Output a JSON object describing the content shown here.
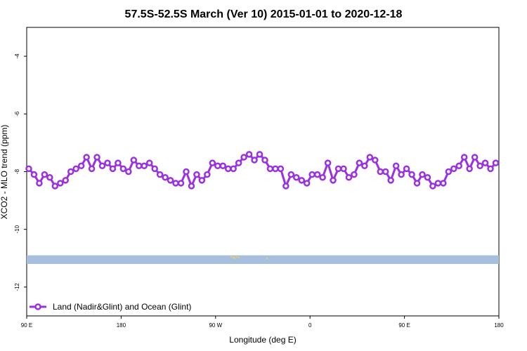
{
  "chart_data": {
    "type": "line",
    "title": "57.5S-52.5S March (Ver 10)   2015-01-01 to 2020-12-18",
    "xlabel": "Longitude (deg E)",
    "ylabel": "XCO2 - MLO trend (ppm)",
    "x_range": [
      90,
      540
    ],
    "ylim": [
      -13,
      -3
    ],
    "y_ticks": [
      -4,
      -6,
      -8,
      -10,
      -12
    ],
    "x_ticks": [
      {
        "value": 90,
        "label": "90 E"
      },
      {
        "value": 180,
        "label": "180"
      },
      {
        "value": 270,
        "label": "90 W"
      },
      {
        "value": 360,
        "label": "0"
      },
      {
        "value": 450,
        "label": "90 E"
      },
      {
        "value": 540,
        "label": "180"
      }
    ],
    "series": [
      {
        "name": "Land (Nadir&Glint) and Ocean (Glint)",
        "color": "#9b30e0",
        "x": [
          92,
          97,
          102,
          107,
          112,
          117,
          122,
          127,
          132,
          137,
          142,
          147,
          152,
          157,
          162,
          167,
          172,
          177,
          182,
          187,
          192,
          197,
          202,
          207,
          212,
          217,
          222,
          227,
          232,
          237,
          242,
          247,
          252,
          257,
          262,
          267,
          272,
          277,
          282,
          287,
          292,
          297,
          302,
          307,
          312,
          317,
          322,
          327,
          332,
          337,
          342,
          347,
          352,
          357,
          362,
          367,
          372,
          377,
          382,
          387,
          392,
          397,
          402,
          407,
          412,
          417,
          422,
          427,
          432,
          437,
          442,
          447,
          452,
          457,
          462,
          467,
          472,
          477,
          482,
          487,
          492,
          497,
          502,
          507,
          512,
          517,
          522,
          527,
          532,
          537
        ],
        "y": [
          -7.9,
          -8.1,
          -8.4,
          -8.1,
          -8.2,
          -8.5,
          -8.4,
          -8.3,
          -8.0,
          -7.9,
          -7.8,
          -7.5,
          -7.9,
          -7.5,
          -7.8,
          -7.7,
          -7.9,
          -7.7,
          -7.9,
          -8.0,
          -7.6,
          -7.8,
          -7.8,
          -7.7,
          -7.9,
          -8.1,
          -8.2,
          -8.3,
          -8.4,
          -8.4,
          -8.0,
          -8.5,
          -8.1,
          -8.3,
          -8.1,
          -7.7,
          -7.8,
          -7.8,
          -7.9,
          -7.9,
          -7.7,
          -7.5,
          -7.4,
          -7.6,
          -7.4,
          -7.6,
          -7.9,
          -7.9,
          -7.9,
          -8.5,
          -8.1,
          -8.2,
          -8.3,
          -8.4,
          -8.1,
          -8.1,
          -8.2,
          -7.7,
          -8.3,
          -7.9,
          -7.9,
          -8.2,
          -8.1,
          -7.7,
          -7.8,
          -7.5,
          -7.6,
          -8.0,
          -8.0,
          -8.3,
          -7.8,
          -8.1,
          -7.9,
          -8.1,
          -8.4,
          -8.1,
          -8.2,
          -8.5,
          -8.4,
          -8.4,
          -8.0,
          -7.9,
          -7.8,
          -7.5,
          -7.9,
          -7.5,
          -7.8,
          -7.7,
          -7.9,
          -7.7
        ]
      }
    ],
    "band": {
      "y_from": -10.9,
      "y_to": -11.2,
      "color": "#a8bedd"
    },
    "land_marks": {
      "color": "#f0d060",
      "y": -10.95,
      "x": [
        285,
        287,
        288,
        290,
        292,
        319
      ]
    },
    "legend": {
      "placement": "bottom-left"
    },
    "grid": false
  }
}
